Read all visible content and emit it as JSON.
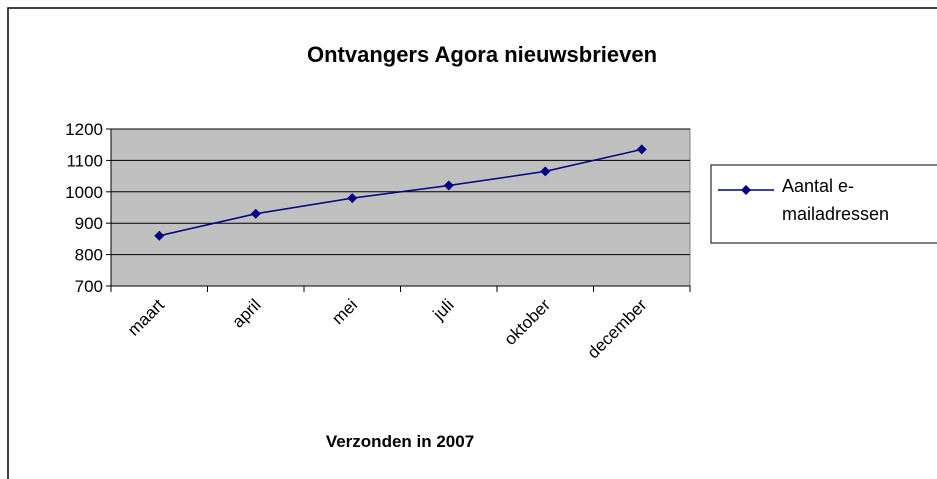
{
  "chart_data": {
    "type": "line",
    "title": "Ontvangers Agora nieuwsbrieven",
    "x_label": "Verzonden in 2007",
    "categories": [
      "maart",
      "april",
      "mei",
      "juli",
      "oktober",
      "december"
    ],
    "series": [
      {
        "name": "Aantal e-mailadressen",
        "color": "#000080",
        "values": [
          860,
          930,
          980,
          1020,
          1065,
          1135
        ]
      }
    ],
    "ylim": [
      700,
      1200
    ],
    "yticks": [
      700,
      800,
      900,
      1000,
      1100,
      1200
    ],
    "grid": true,
    "legend": "right",
    "plot_background": "#c0c0c0"
  }
}
